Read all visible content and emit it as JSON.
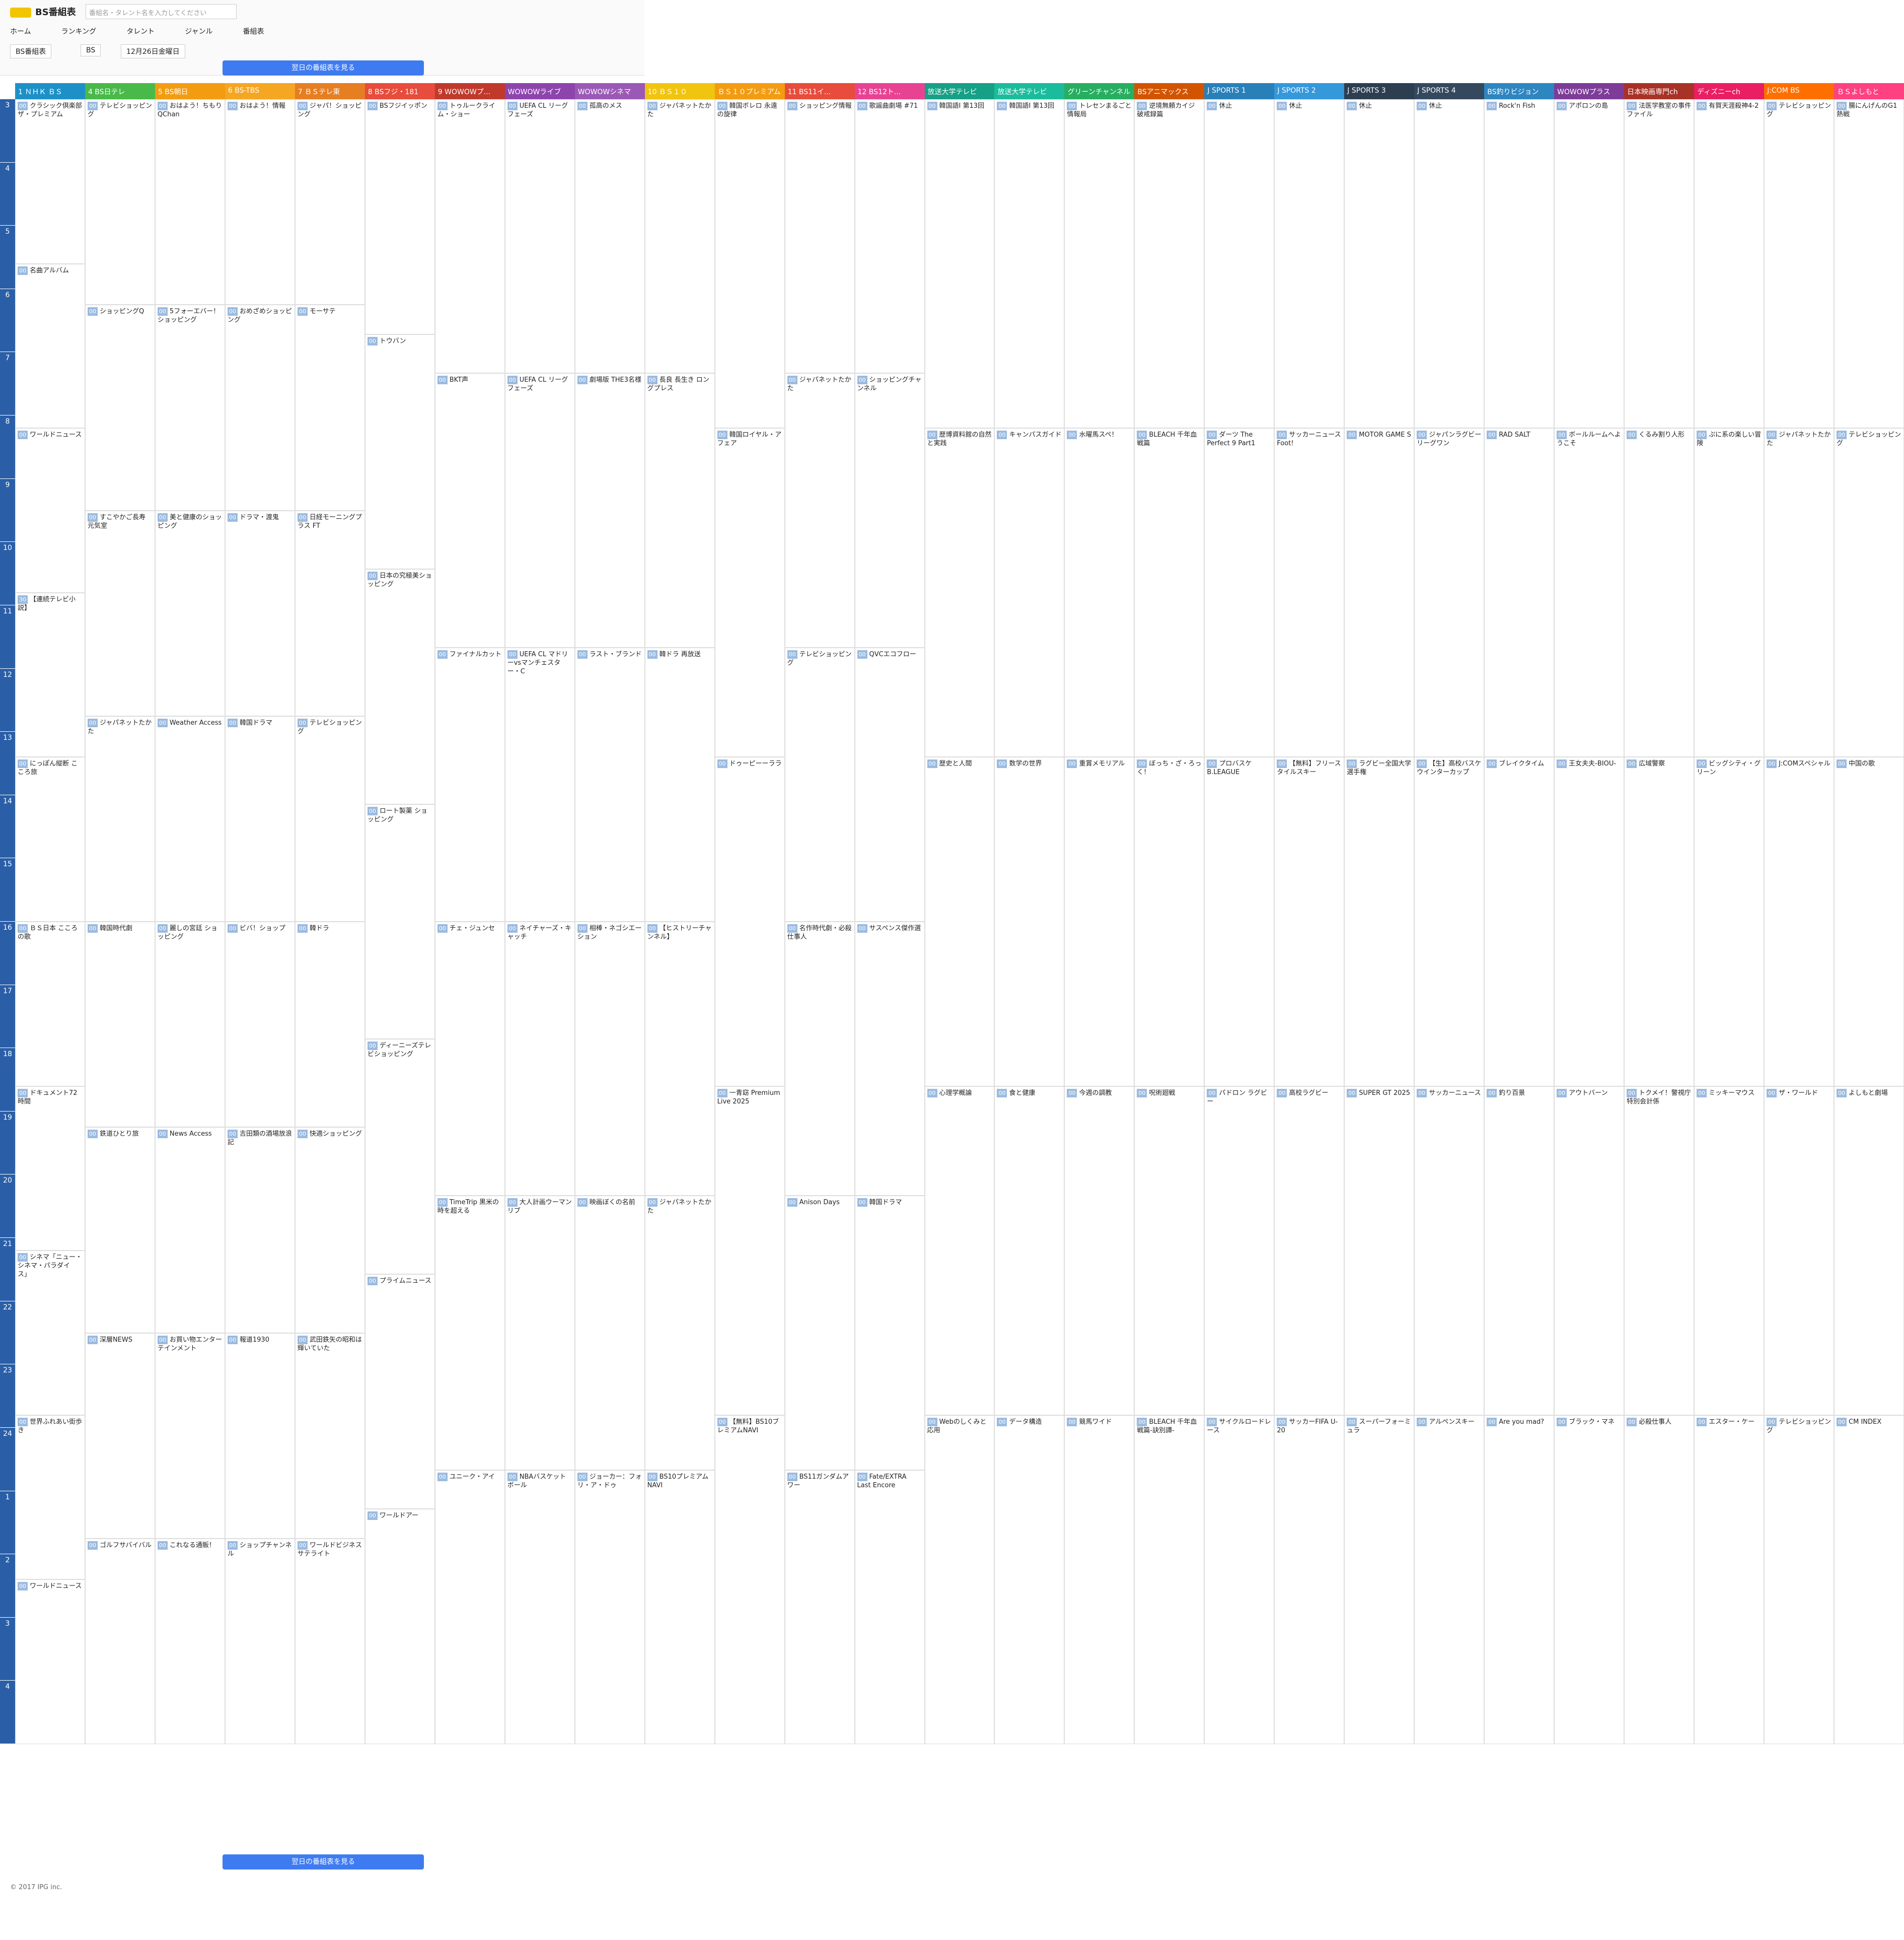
{
  "header": {
    "logo": "BS番組表",
    "search_placeholder": "番組名・タレント名を入力してください",
    "nav": [
      "ホーム",
      "ランキング",
      "タレント",
      "ジャンル",
      "番組表"
    ],
    "selects": [
      "BS番組表",
      "BS",
      "12月26日金曜日"
    ],
    "next_button": "翌日の番組表を見る"
  },
  "hours": [
    "3",
    "4",
    "5",
    "6",
    "7",
    "8",
    "9",
    "10",
    "11",
    "12",
    "13",
    "14",
    "15",
    "16",
    "17",
    "18",
    "19",
    "20",
    "21",
    "22",
    "23",
    "24",
    "1",
    "2",
    "3",
    "4"
  ],
  "channels": [
    {
      "name": "1 ＮＨＫ ＢＳ",
      "color": "#1e90c8",
      "programs": [
        {
          "min": "00",
          "title": "クラシック倶楽部 ザ・プレミアム"
        },
        {
          "min": "00",
          "title": "名曲アルバム"
        },
        {
          "min": "00",
          "title": "ワールドニュース"
        },
        {
          "min": "30",
          "title": "【連続テレビ小説】"
        },
        {
          "min": "00",
          "title": "にっぽん縦断 こころ旅"
        },
        {
          "min": "00",
          "title": "ＢＳ日本 こころの歌"
        },
        {
          "min": "00",
          "title": "ドキュメント72時間"
        },
        {
          "min": "00",
          "title": "シネマ「ニュー・シネマ・パラダイス」"
        },
        {
          "min": "00",
          "title": "世界ふれあい街歩き"
        },
        {
          "min": "00",
          "title": "ワールドニュース"
        }
      ]
    },
    {
      "name": "4 BS日テレ",
      "color": "#49b94a",
      "programs": [
        {
          "min": "00",
          "title": "テレビショッピング"
        },
        {
          "min": "00",
          "title": "ショッピングQ"
        },
        {
          "min": "00",
          "title": "すこやかご長寿 元気室"
        },
        {
          "min": "00",
          "title": "ジャパネットたかた"
        },
        {
          "min": "00",
          "title": "韓国時代劇"
        },
        {
          "min": "00",
          "title": "鉄道ひとり旅"
        },
        {
          "min": "00",
          "title": "深層NEWS"
        },
        {
          "min": "00",
          "title": "ゴルフサバイバル"
        }
      ]
    },
    {
      "name": "5 BS朝日",
      "color": "#f39c12",
      "programs": [
        {
          "min": "00",
          "title": "おはよう！ちもりQChan"
        },
        {
          "min": "00",
          "title": "5フォーエバー！ショッピング"
        },
        {
          "min": "00",
          "title": "美と健康のショッピング"
        },
        {
          "min": "00",
          "title": "Weather Access"
        },
        {
          "min": "00",
          "title": "麗しの宮廷 ショッピング"
        },
        {
          "min": "00",
          "title": "News Access"
        },
        {
          "min": "00",
          "title": "お買い物エンターテインメント"
        },
        {
          "min": "00",
          "title": "これなる通販！"
        }
      ]
    },
    {
      "name": "6 BS-TBS",
      "color": "#f5a623",
      "programs": [
        {
          "min": "00",
          "title": "おはよう！情報"
        },
        {
          "min": "00",
          "title": "おめざめショッピング"
        },
        {
          "min": "00",
          "title": "ドラマ・渡鬼"
        },
        {
          "min": "00",
          "title": "韓国ドラマ"
        },
        {
          "min": "00",
          "title": "ビバ！ショップ"
        },
        {
          "min": "00",
          "title": "吉田類の酒場放浪記"
        },
        {
          "min": "00",
          "title": "報道1930"
        },
        {
          "min": "00",
          "title": "ショップチャンネル"
        }
      ]
    },
    {
      "name": "7 ＢＳテレ東",
      "color": "#e67e22",
      "programs": [
        {
          "min": "00",
          "title": "ジャパ！ショッピング"
        },
        {
          "min": "00",
          "title": "モーサテ"
        },
        {
          "min": "00",
          "title": "日経モーニングプラス FT"
        },
        {
          "min": "00",
          "title": "テレビショッピング"
        },
        {
          "min": "00",
          "title": "韓ドラ"
        },
        {
          "min": "00",
          "title": "快適ショッピング"
        },
        {
          "min": "00",
          "title": "武田鉄矢の昭和は輝いていた"
        },
        {
          "min": "00",
          "title": "ワールドビジネスサテライト"
        }
      ]
    },
    {
      "name": "8 BSフジ・181",
      "color": "#e74c3c",
      "programs": [
        {
          "min": "00",
          "title": "BSフジイッポン"
        },
        {
          "min": "00",
          "title": "トウバン"
        },
        {
          "min": "00",
          "title": "日本の究極美ショッピング"
        },
        {
          "min": "00",
          "title": "ロート製薬 ショッピング"
        },
        {
          "min": "00",
          "title": "ディーニーズテレビショッピング"
        },
        {
          "min": "00",
          "title": "プライムニュース"
        },
        {
          "min": "00",
          "title": "ワールドアー"
        }
      ]
    },
    {
      "name": "9 WOWOWプ...",
      "color": "#c0392b",
      "programs": [
        {
          "min": "00",
          "title": "トゥルークライム・ショー"
        },
        {
          "min": "00",
          "title": "BKT声"
        },
        {
          "min": "00",
          "title": "ファイナルカット"
        },
        {
          "min": "00",
          "title": "チェ・ジュンセ"
        },
        {
          "min": "00",
          "title": "TimeTrip 黒米の時を超える"
        },
        {
          "min": "00",
          "title": "ユニーク・アイ"
        }
      ]
    },
    {
      "name": "WOWOWライブ",
      "color": "#8e44ad",
      "programs": [
        {
          "min": "00",
          "title": "UEFA CL リーグフェーズ"
        },
        {
          "min": "00",
          "title": "UEFA CL リーグフェーズ"
        },
        {
          "min": "00",
          "title": "UEFA CL マドリーvsマンチェスター・C"
        },
        {
          "min": "00",
          "title": "ネイチャーズ・キャッチ"
        },
        {
          "min": "00",
          "title": "大人計画ウーマンリブ"
        },
        {
          "min": "00",
          "title": "NBAバスケットボール"
        }
      ]
    },
    {
      "name": "WOWOWシネマ",
      "color": "#9b59b6",
      "programs": [
        {
          "min": "00",
          "title": "孤高のメス"
        },
        {
          "min": "00",
          "title": "劇場版 THE3名様"
        },
        {
          "min": "00",
          "title": "ラスト・ブランド"
        },
        {
          "min": "00",
          "title": "相棒・ネゴシエーション"
        },
        {
          "min": "00",
          "title": "映画ぼくの名前"
        },
        {
          "min": "00",
          "title": "ジョーカー：フォリ・ア・ドゥ"
        }
      ]
    },
    {
      "name": "10 ＢＳ１０",
      "color": "#f1c40f",
      "programs": [
        {
          "min": "00",
          "title": "ジャパネットたかた"
        },
        {
          "min": "00",
          "title": "長良 長生き ロングプレス"
        },
        {
          "min": "00",
          "title": "韓ドラ 再放送"
        },
        {
          "min": "00",
          "title": "【ヒストリーチャンネル】"
        },
        {
          "min": "00",
          "title": "ジャパネットたかた"
        },
        {
          "min": "00",
          "title": "BS10プレミアムNAVI"
        }
      ]
    },
    {
      "name": "ＢＳ１０プレミアム",
      "color": "#f39c12",
      "programs": [
        {
          "min": "00",
          "title": "韓国ボレロ 永遠の旋律"
        },
        {
          "min": "00",
          "title": "韓国ロイヤル・アフェア"
        },
        {
          "min": "00",
          "title": "ドゥーピーーララ"
        },
        {
          "min": "00",
          "title": "一青窈 Premium Live 2025"
        },
        {
          "min": "00",
          "title": "【無料】BS10ブレミアムNAVI"
        }
      ]
    },
    {
      "name": "11 BS11イ...",
      "color": "#e74c3c",
      "programs": [
        {
          "min": "00",
          "title": "ショッピング情報"
        },
        {
          "min": "00",
          "title": "ジャパネットたかた"
        },
        {
          "min": "00",
          "title": "テレビショッピング"
        },
        {
          "min": "00",
          "title": "名作時代劇・必殺仕事人"
        },
        {
          "min": "00",
          "title": "Anison Days"
        },
        {
          "min": "00",
          "title": "BS11ガンダムアワー"
        }
      ]
    },
    {
      "name": "12 BS12ト...",
      "color": "#e84393",
      "programs": [
        {
          "min": "00",
          "title": "歌謡曲劇場 #71"
        },
        {
          "min": "00",
          "title": "ショッピングチャンネル"
        },
        {
          "min": "00",
          "title": "QVCエコフロー"
        },
        {
          "min": "00",
          "title": "サスペンス傑作選"
        },
        {
          "min": "00",
          "title": "韓国ドラマ"
        },
        {
          "min": "00",
          "title": "Fate/EXTRA Last Encore"
        }
      ]
    },
    {
      "name": "放送大学テレビ",
      "color": "#16a085",
      "programs": [
        {
          "min": "00",
          "title": "韓国語I 第13回"
        },
        {
          "min": "00",
          "title": "歴博資料館の自然と実践"
        },
        {
          "min": "00",
          "title": "歴史と人間"
        },
        {
          "min": "00",
          "title": "心理学概論"
        },
        {
          "min": "00",
          "title": "Webのしくみと応用"
        }
      ]
    },
    {
      "name": "放送大学テレビ",
      "color": "#1abc9c",
      "programs": [
        {
          "min": "00",
          "title": "韓国語I 第13回"
        },
        {
          "min": "00",
          "title": "キャンパスガイド"
        },
        {
          "min": "00",
          "title": "数学の世界"
        },
        {
          "min": "00",
          "title": "食と健康"
        },
        {
          "min": "00",
          "title": "データ構造"
        }
      ]
    },
    {
      "name": "グリーンチャンネル",
      "color": "#27ae60",
      "programs": [
        {
          "min": "00",
          "title": "トレセンまるごと情報局"
        },
        {
          "min": "00",
          "title": "水曜馬スペ！"
        },
        {
          "min": "00",
          "title": "重賞メモリアル"
        },
        {
          "min": "00",
          "title": "今週の調教"
        },
        {
          "min": "00",
          "title": "競馬ワイド"
        }
      ]
    },
    {
      "name": "BSアニマックス",
      "color": "#d35400",
      "programs": [
        {
          "min": "00",
          "title": "逆境無頼カイジ 破戒録篇"
        },
        {
          "min": "00",
          "title": "BLEACH 千年血戦篇"
        },
        {
          "min": "00",
          "title": "ぼっち・ざ・ろっく！"
        },
        {
          "min": "00",
          "title": "呪術廻戦"
        },
        {
          "min": "00",
          "title": "BLEACH 千年血戦篇-訣別譚-"
        }
      ]
    },
    {
      "name": "J SPORTS 1",
      "color": "#2980b9",
      "programs": [
        {
          "min": "00",
          "title": "休止"
        },
        {
          "min": "00",
          "title": "ダーツ The Perfect 9 Part1"
        },
        {
          "min": "00",
          "title": "プロバスケ B.LEAGUE"
        },
        {
          "min": "00",
          "title": "パドロン ラグビー"
        },
        {
          "min": "00",
          "title": "サイクルロードレース"
        }
      ]
    },
    {
      "name": "J SPORTS 2",
      "color": "#3498db",
      "programs": [
        {
          "min": "00",
          "title": "休止"
        },
        {
          "min": "00",
          "title": "サッカーニュース Foot!"
        },
        {
          "min": "00",
          "title": "【無料】フリースタイルスキー"
        },
        {
          "min": "00",
          "title": "高校ラグビー"
        },
        {
          "min": "00",
          "title": "サッカーFIFA U-20"
        }
      ]
    },
    {
      "name": "J SPORTS 3",
      "color": "#2c3e50",
      "programs": [
        {
          "min": "00",
          "title": "休止"
        },
        {
          "min": "00",
          "title": "MOTOR GAME S"
        },
        {
          "min": "00",
          "title": "ラグビー全国大学選手権"
        },
        {
          "min": "00",
          "title": "SUPER GT 2025"
        },
        {
          "min": "00",
          "title": "スーパーフォーミュラ"
        }
      ]
    },
    {
      "name": "J SPORTS 4",
      "color": "#34495e",
      "programs": [
        {
          "min": "00",
          "title": "休止"
        },
        {
          "min": "00",
          "title": "ジャパンラグビー リーグワン"
        },
        {
          "min": "00",
          "title": "【生】高校バスケ ウインターカップ"
        },
        {
          "min": "00",
          "title": "サッカーニュース"
        },
        {
          "min": "00",
          "title": "アルペンスキー"
        }
      ]
    },
    {
      "name": "BS釣りビジョン",
      "color": "#2e86c1",
      "programs": [
        {
          "min": "00",
          "title": "Rock'n Fish"
        },
        {
          "min": "00",
          "title": "RAD SALT"
        },
        {
          "min": "00",
          "title": "ブレイクタイム"
        },
        {
          "min": "00",
          "title": "釣り百景"
        },
        {
          "min": "00",
          "title": "Are you mad?"
        }
      ]
    },
    {
      "name": "WOWOWプラス",
      "color": "#7d3c98",
      "programs": [
        {
          "min": "00",
          "title": "アポロンの島"
        },
        {
          "min": "00",
          "title": "ボールルームへようこそ"
        },
        {
          "min": "00",
          "title": "王女夫夫-BIOU-"
        },
        {
          "min": "00",
          "title": "アウトバーン"
        },
        {
          "min": "00",
          "title": "ブラック・マネ"
        }
      ]
    },
    {
      "name": "日本映画専門ch",
      "color": "#a93226",
      "programs": [
        {
          "min": "00",
          "title": "法医学教室の事件ファイル"
        },
        {
          "min": "00",
          "title": "くるみ割り人形"
        },
        {
          "min": "00",
          "title": "広域警察"
        },
        {
          "min": "00",
          "title": "トクメイ！警視庁特別会計係"
        },
        {
          "min": "00",
          "title": "必殺仕事人"
        }
      ]
    },
    {
      "name": "ディズニーch",
      "color": "#e91e63",
      "programs": [
        {
          "min": "00",
          "title": "有賀天涯殺神4-2"
        },
        {
          "min": "00",
          "title": "ぷに系の楽しい冒険"
        },
        {
          "min": "00",
          "title": "ビッグシティ・グリーン"
        },
        {
          "min": "00",
          "title": "ミッキーマウス"
        },
        {
          "min": "00",
          "title": "エスター・ケー"
        }
      ]
    },
    {
      "name": "J:COM BS",
      "color": "#ff6f00",
      "programs": [
        {
          "min": "00",
          "title": "テレビショッピング"
        },
        {
          "min": "00",
          "title": "ジャパネットたかた"
        },
        {
          "min": "00",
          "title": "J:COMスペシャル"
        },
        {
          "min": "00",
          "title": "ザ・ワールド"
        },
        {
          "min": "00",
          "title": "テレビショッピング"
        }
      ]
    },
    {
      "name": "ＢＳよしもと",
      "color": "#ff4081",
      "programs": [
        {
          "min": "00",
          "title": "腸にんげんのG1 熱戦"
        },
        {
          "min": "00",
          "title": "テレビショッピング"
        },
        {
          "min": "00",
          "title": "中国の歌"
        },
        {
          "min": "00",
          "title": "よしもと劇場"
        },
        {
          "min": "00",
          "title": "CM INDEX"
        }
      ]
    }
  ],
  "footer": "© 2017 IPG inc."
}
